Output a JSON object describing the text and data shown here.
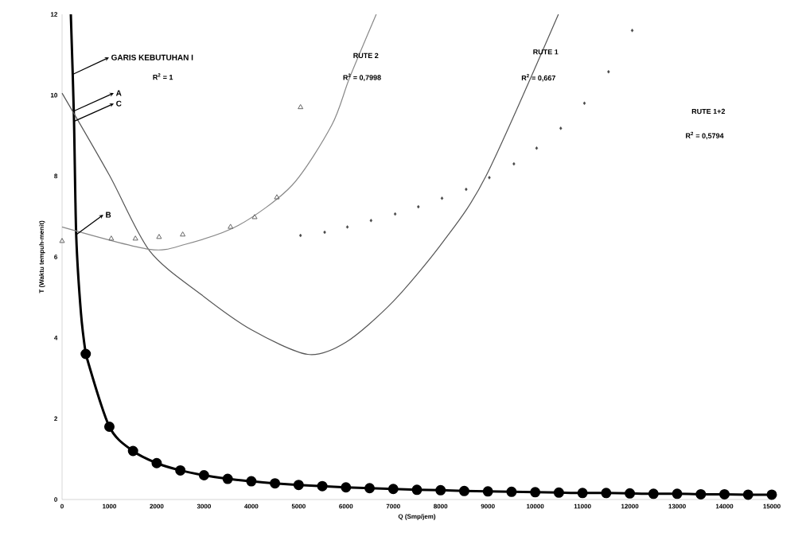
{
  "chart_data": {
    "type": "line",
    "xlabel": "Q (Smp/jem)",
    "ylabel": "T (Waktu tempuh-menit)",
    "xlim": [
      0,
      15000
    ],
    "xticks": [
      0,
      1000,
      2000,
      3000,
      4000,
      5000,
      6000,
      7000,
      8000,
      9000,
      10000,
      11000,
      12000,
      13000,
      14000,
      15000
    ],
    "ylim": [
      0,
      12
    ],
    "yticks": [
      0,
      2,
      4,
      6,
      8,
      10,
      12
    ],
    "grid": false,
    "series": [
      {
        "color": "#000000",
        "marker": "none",
        "x": [
          185,
          250,
          300,
          400,
          500
        ],
        "values": [
          12,
          9.5,
          6.5,
          4.6,
          3.6
        ]
      },
      {
        "color": "#000000",
        "marker": "circle",
        "x": [
          500,
          1000,
          1500,
          2000,
          2500,
          3000,
          3500,
          4000,
          4500,
          5000,
          5500,
          6000,
          6500,
          7000,
          7500,
          8000,
          8500,
          9000,
          9500,
          10000,
          10500,
          11000,
          11500,
          12000,
          12500,
          13000,
          13500,
          14000,
          14500,
          15000
        ],
        "values": [
          3.6,
          1.8,
          1.2,
          0.9,
          0.72,
          0.6,
          0.51,
          0.45,
          0.4,
          0.36,
          0.33,
          0.3,
          0.28,
          0.26,
          0.24,
          0.23,
          0.21,
          0.2,
          0.19,
          0.18,
          0.17,
          0.16,
          0.16,
          0.15,
          0.14,
          0.14,
          0.13,
          0.13,
          0.12,
          0.12
        ]
      },
      {
        "color": "#555555",
        "marker": "none",
        "x": [
          0,
          1000,
          1850,
          2940,
          4000,
          5190,
          6000,
          7000,
          8050,
          8960,
          10490
        ],
        "values": [
          10.05,
          8.02,
          6.15,
          5.07,
          4.2,
          3.59,
          3.89,
          4.9,
          6.37,
          8.0,
          12
        ]
      },
      {
        "color": "#888888",
        "marker": "none",
        "x": [
          0,
          1830,
          2600,
          3730,
          4860,
          5700,
          6080,
          6640
        ],
        "values": [
          6.74,
          6.19,
          6.31,
          6.78,
          7.77,
          9.26,
          10.44,
          12
        ]
      },
      {
        "type": "scatter",
        "color": "#666666",
        "marker": "triangle",
        "x": [
          0,
          1040,
          1550,
          2050,
          2550,
          3560,
          4070,
          4540,
          5040
        ],
        "values": [
          6.39,
          6.45,
          6.45,
          6.49,
          6.55,
          6.74,
          6.98,
          7.47,
          9.7
        ]
      },
      {
        "type": "scatter",
        "color": "#444444",
        "marker": "diamond",
        "x": [
          5040,
          5550,
          6030,
          6530,
          7040,
          7530,
          8030,
          8540,
          9030,
          9550,
          10030,
          10540,
          11040,
          11550,
          12050
        ],
        "values": [
          6.53,
          6.61,
          6.74,
          6.9,
          7.06,
          7.24,
          7.45,
          7.67,
          7.96,
          8.3,
          8.69,
          9.18,
          9.8,
          10.58,
          11.6
        ]
      }
    ],
    "annotations": [
      {
        "text": "GARIS KEBUTUHAN I",
        "x": 235,
        "y": 10.52
      },
      {
        "text": "A",
        "x": 235,
        "y": 9.6
      },
      {
        "text": "C",
        "x": 270,
        "y": 9.36
      },
      {
        "text": "B",
        "x": 300,
        "y": 6.55
      },
      "R$^{2}$ = 1",
      "RUTE 2",
      "R$^{2}$ = 0,7998",
      "RUTE 1",
      "R$^{2}$ = 0,667",
      "RUTE 1+2",
      "R$^{2}$ = 0,5794"
    ]
  }
}
